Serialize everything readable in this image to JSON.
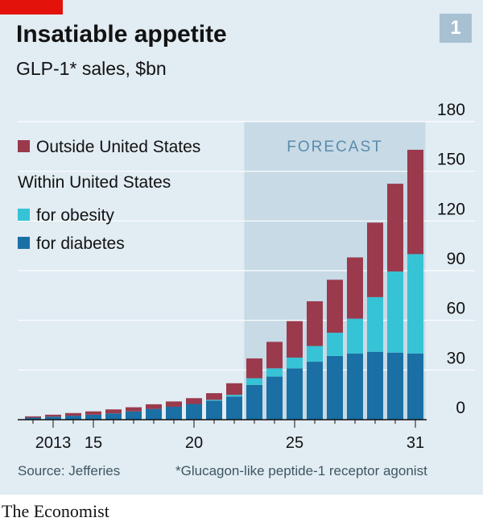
{
  "header": {
    "title": "Insatiable appetite",
    "subtitle": "GLP-1* sales, $bn",
    "badge": "1"
  },
  "legend": {
    "outside": "Outside United States",
    "within_heading": "Within United States",
    "obesity": "for obesity",
    "diabetes": "for diabetes"
  },
  "footer": {
    "source": "Source: Jefferies",
    "note": "*Glucagon-like peptide-1 receptor agonist",
    "brand": "The Economist"
  },
  "colors": {
    "outside": "#9a3a4c",
    "obesity": "#36c3d6",
    "diabetes": "#1a6fa4",
    "forecast_band": "#c7dae6",
    "background": "#e1ecf3",
    "gridline": "#ffffff",
    "axis": "#121212",
    "accent": "#e3120b"
  },
  "chart_data": {
    "type": "bar",
    "stacked": true,
    "x": [
      2012,
      2013,
      2014,
      2015,
      2016,
      2017,
      2018,
      2019,
      2020,
      2021,
      2022,
      2023,
      2024,
      2025,
      2026,
      2027,
      2028,
      2029,
      2030,
      2031
    ],
    "series": [
      {
        "name": "for diabetes",
        "values": [
          1.2,
          1.8,
          2.4,
          3.0,
          3.8,
          5.0,
          6.5,
          7.8,
          9.5,
          11.5,
          14.0,
          21.0,
          26.0,
          31.0,
          35.0,
          38.5,
          40.0,
          41.0,
          40.5,
          40.0
        ]
      },
      {
        "name": "for obesity",
        "values": [
          0,
          0,
          0,
          0,
          0,
          0,
          0,
          0,
          0,
          0.5,
          1.0,
          4.0,
          5.0,
          6.5,
          9.5,
          14.0,
          21.0,
          33.0,
          49.0,
          60.0
        ]
      },
      {
        "name": "Outside United States",
        "values": [
          0.8,
          1.2,
          1.6,
          2.0,
          2.4,
          2.5,
          2.8,
          3.2,
          3.5,
          4.0,
          7.0,
          12.0,
          16.0,
          22.0,
          27.0,
          32.0,
          37.0,
          45.0,
          53.0,
          63.0
        ]
      }
    ],
    "x_tick_labels": [
      {
        "x": 2013,
        "label": "2013"
      },
      {
        "x": 2015,
        "label": "15"
      },
      {
        "x": 2020,
        "label": "20"
      },
      {
        "x": 2025,
        "label": "25"
      },
      {
        "x": 2031,
        "label": "31"
      }
    ],
    "ylim": [
      0,
      180
    ],
    "y_ticks": [
      0,
      30,
      60,
      90,
      120,
      150,
      180
    ],
    "y_tick_labels": [
      "0",
      "30",
      "60",
      "90",
      "120",
      "150",
      "180"
    ],
    "forecast": {
      "from": 2023,
      "to": 2031,
      "label": "FORECAST"
    },
    "grid": true,
    "legend_position": "top-left"
  }
}
